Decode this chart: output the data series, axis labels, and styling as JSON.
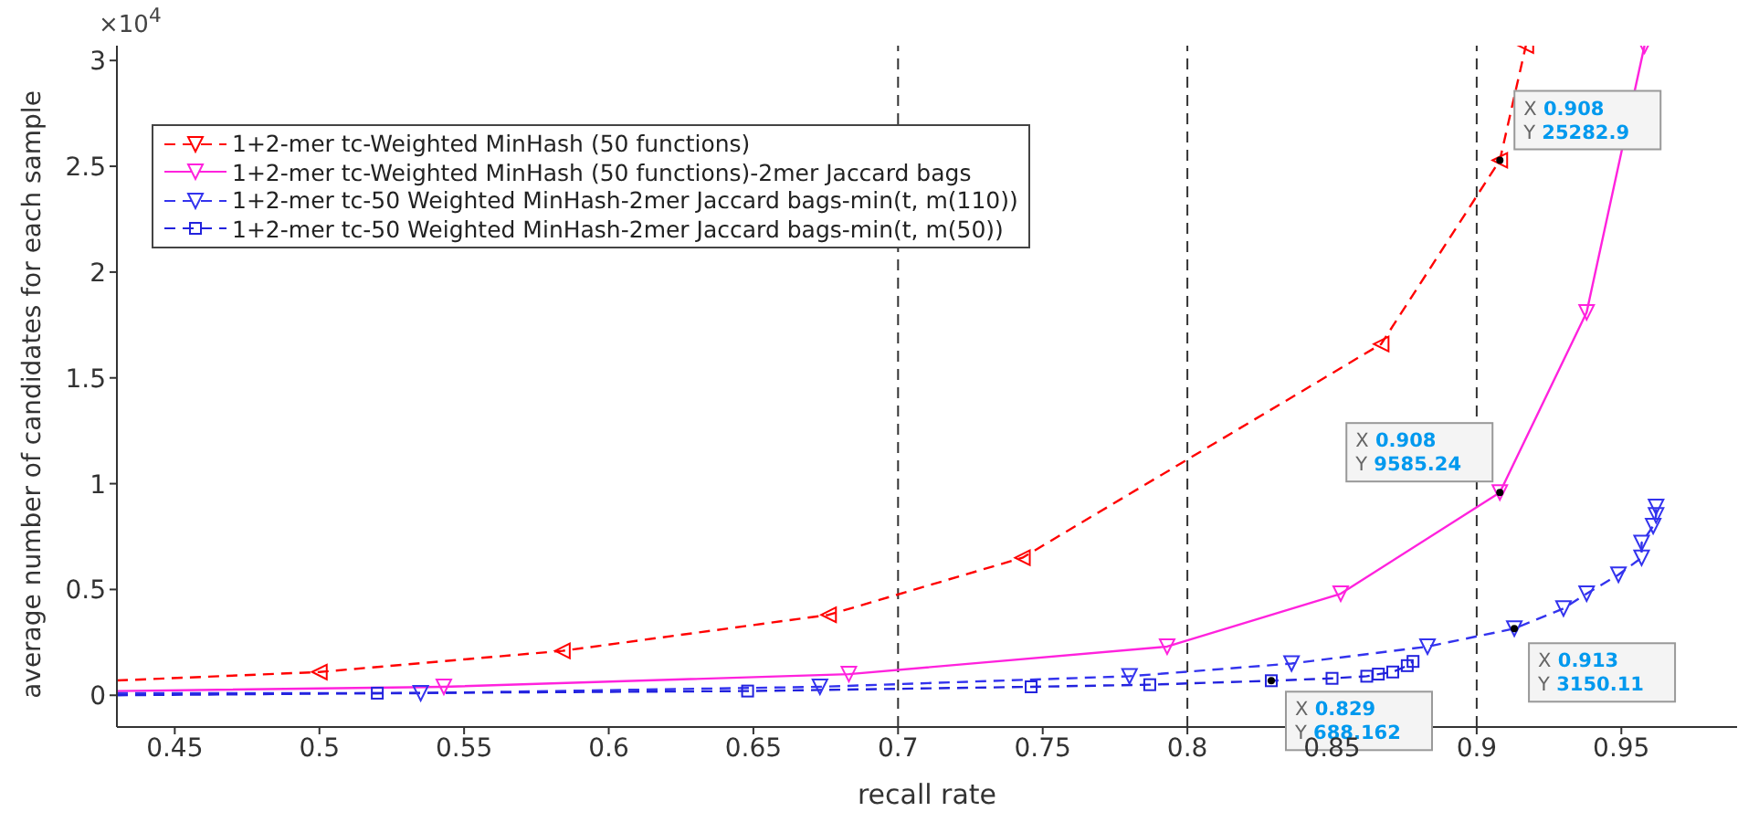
{
  "chart_data": {
    "type": "line",
    "xlabel": "recall rate",
    "ylabel": "average number of candidates for each sample",
    "xlim": [
      0.43,
      0.99
    ],
    "ylim": [
      -0.15,
      3.07
    ],
    "xticks": [
      0.45,
      0.5,
      0.55,
      0.6,
      0.65,
      0.7,
      0.75,
      0.8,
      0.85,
      0.9,
      0.95
    ],
    "yticks": [
      0,
      0.5,
      1,
      1.5,
      2,
      2.5,
      3
    ],
    "grid": false,
    "legend": "top left",
    "series": [
      {
        "name": "1+2-mer tc-Weighted MinHash (50 functions)",
        "color": "#ff0000",
        "marker": "triangle",
        "line_style": "dashed",
        "x": [
          0.43,
          0.5,
          0.584,
          0.676,
          0.743,
          0.867,
          0.908,
          0.917
        ],
        "values": [
          0.07,
          0.11,
          0.21,
          0.38,
          0.65,
          1.66,
          2.52829,
          3.07
        ]
      },
      {
        "name": "1+2-mer tc-Weighted MinHash (50 functions)-2mer Jaccard bags",
        "color": "#ff22dd",
        "marker": "triangle",
        "line_style": "solid",
        "x": [
          0.43,
          0.543,
          0.683,
          0.793,
          0.853,
          0.908,
          0.938,
          0.958
        ],
        "values": [
          0.02,
          0.04,
          0.1,
          0.23,
          0.48,
          0.958524,
          1.81,
          3.07
        ]
      },
      {
        "name": "1+2-mer tc-50 Weighted MinHash-2mer Jaccard bags-min(t, m(110))",
        "color": "#3333ee",
        "marker": "triangle",
        "line_style": "dashed",
        "x": [
          0.43,
          0.535,
          0.673,
          0.78,
          0.836,
          0.883,
          0.913,
          0.93,
          0.938,
          0.949,
          0.957,
          0.957,
          0.961,
          0.962,
          0.962
        ],
        "values": [
          0.01,
          0.01,
          0.04,
          0.09,
          0.15,
          0.23,
          0.315011,
          0.41,
          0.48,
          0.57,
          0.65,
          0.72,
          0.8,
          0.85,
          0.89
        ]
      },
      {
        "name": "1+2-mer tc-50 Weighted MinHash-2mer Jaccard bags-min(t, m(50))",
        "color": "#2222dd",
        "marker": "square",
        "line_style": "dashed",
        "x": [
          0.43,
          0.52,
          0.648,
          0.746,
          0.787,
          0.829,
          0.85,
          0.862,
          0.866,
          0.871,
          0.876,
          0.878
        ],
        "values": [
          0,
          0.01,
          0.02,
          0.04,
          0.05,
          0.0688162,
          0.08,
          0.09,
          0.1,
          0.11,
          0.14,
          0.16
        ]
      }
    ],
    "ref_lines": [
      {
        "axis": "x",
        "value": 0.7,
        "color": "#333333",
        "line_style": "dashed"
      },
      {
        "axis": "x",
        "value": 0.8,
        "color": "#333333",
        "line_style": "dashed"
      },
      {
        "axis": "x",
        "value": 0.9,
        "color": "#333333",
        "line_style": "dashed"
      }
    ],
    "annotations": [
      "×10$^{4}$",
      {
        "text": "X 0.908\nY 25282.9",
        "x": 0.908,
        "y": 2.52829
      },
      {
        "text": "X 0.908\nY 9585.24",
        "x": 0.908,
        "y": 0.958524
      },
      {
        "text": "X 0.913\nY 3150.11",
        "x": 0.913,
        "y": 0.315011
      },
      {
        "text": "X 0.829\nY 688.162",
        "x": 0.829,
        "y": 0.0688162
      }
    ]
  }
}
